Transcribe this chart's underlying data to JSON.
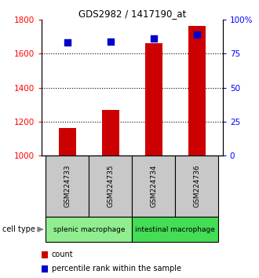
{
  "title": "GDS2982 / 1417190_at",
  "samples": [
    "GSM224733",
    "GSM224735",
    "GSM224734",
    "GSM224736"
  ],
  "counts": [
    1163,
    1270,
    1660,
    1762
  ],
  "percentile_ranks": [
    83,
    84,
    86,
    89
  ],
  "ylim_left": [
    1000,
    1800
  ],
  "ylim_right": [
    0,
    100
  ],
  "yticks_left": [
    1000,
    1200,
    1400,
    1600,
    1800
  ],
  "yticks_right": [
    0,
    25,
    50,
    75,
    100
  ],
  "ytick_labels_right": [
    "0",
    "25",
    "50",
    "75",
    "100%"
  ],
  "cell_types": [
    {
      "label": "splenic macrophage",
      "samples_idx": [
        0,
        1
      ],
      "color": "#90EE90"
    },
    {
      "label": "intestinal macrophage",
      "samples_idx": [
        2,
        3
      ],
      "color": "#44DD55"
    }
  ],
  "bar_color": "#CC0000",
  "dot_color": "#0000CC",
  "bar_width": 0.4,
  "label_box_color": "#C8C8C8",
  "count_label": "count",
  "percentile_label": "percentile rank within the sample",
  "cell_type_label": "cell type"
}
